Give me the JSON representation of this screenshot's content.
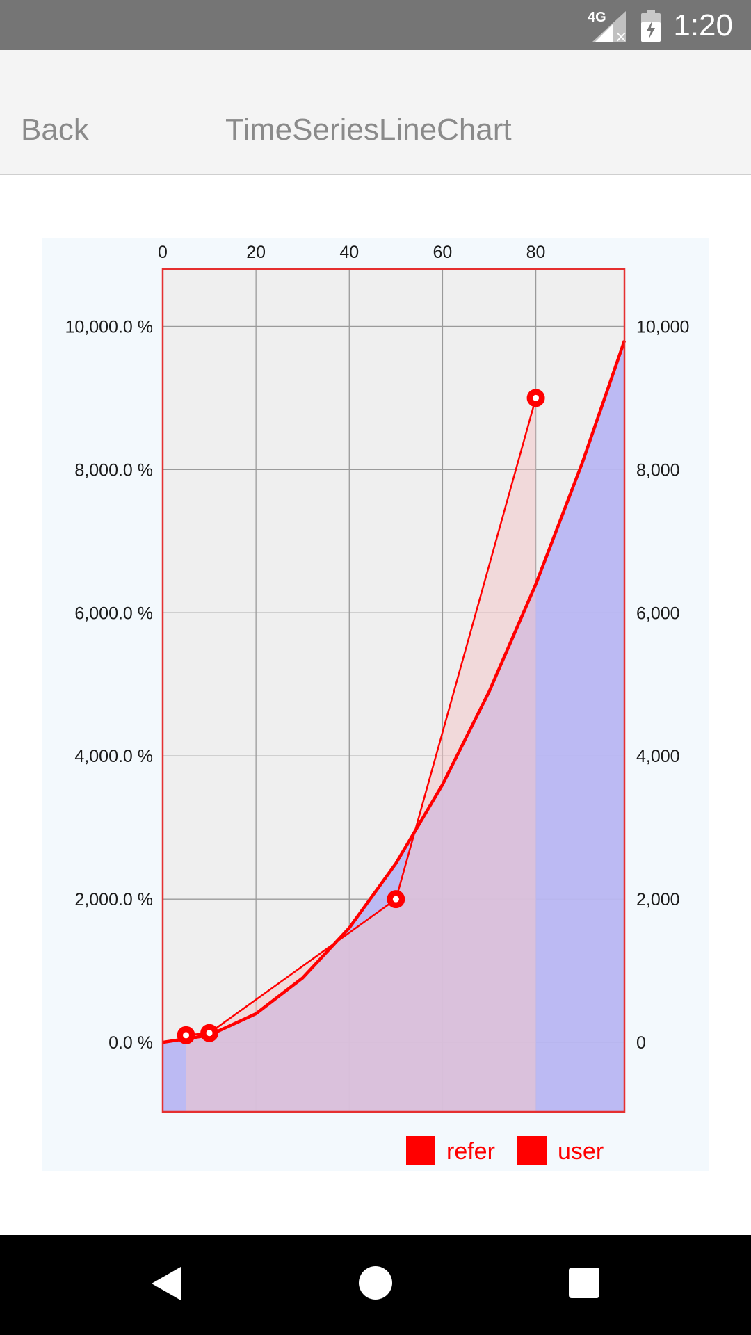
{
  "status_bar": {
    "network": "4G",
    "time": "1:20",
    "icons": [
      "signal-icon",
      "battery-icon"
    ]
  },
  "header": {
    "back_label": "Back",
    "title": "TimeSeriesLineChart"
  },
  "colors": {
    "series_line": "#ff0000",
    "refer_fill": "#f2c6c8",
    "user_fill": "#b8b6f2",
    "overlap_fill": "#c697c8",
    "plot_bg": "#efefef",
    "panel_bg": "#f3f9fd"
  },
  "chart_data": {
    "type": "line",
    "x_ticks": [
      0,
      20,
      40,
      60,
      80
    ],
    "x_tick_labels": [
      "0",
      "20",
      "40",
      "60",
      "80"
    ],
    "y_ticks": [
      0,
      2000,
      4000,
      6000,
      8000,
      10000
    ],
    "y_left_labels": [
      "0.0 %",
      "2,000.0 %",
      "4,000.0 %",
      "6,000.0 %",
      "8,000.0 %",
      "10,000.0 %"
    ],
    "y_right_labels": [
      "0",
      "2,000",
      "4,000",
      "6,000",
      "8,000",
      "10,000"
    ],
    "xlim": [
      0,
      99
    ],
    "ylim": [
      -970,
      10800
    ],
    "grid": true,
    "legend_position": "bottom-right",
    "series": [
      {
        "name": "refer",
        "style": "markers",
        "fill": true,
        "x": [
          5,
          10,
          50,
          80
        ],
        "y": [
          100,
          130,
          2000,
          9000
        ]
      },
      {
        "name": "user",
        "style": "curve",
        "fill": true,
        "x": [
          0,
          10,
          20,
          30,
          40,
          50,
          60,
          70,
          80,
          90,
          99
        ],
        "y": [
          0,
          100,
          400,
          900,
          1600,
          2500,
          3600,
          4900,
          6400,
          8100,
          9800
        ]
      }
    ]
  }
}
